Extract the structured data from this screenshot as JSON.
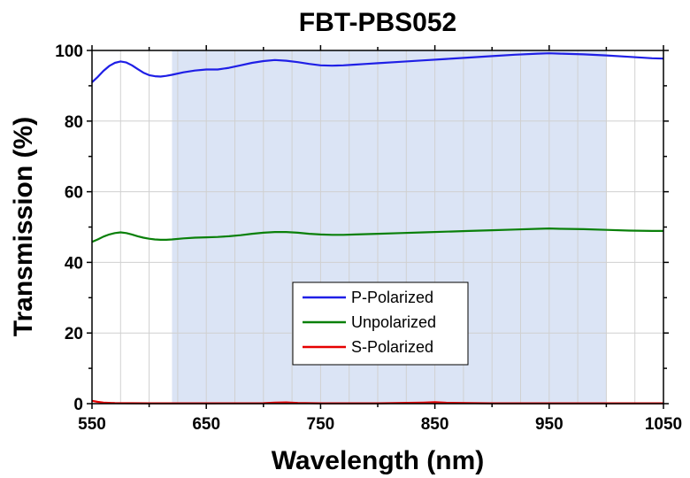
{
  "chart_data": {
    "type": "line",
    "title": "FBT-PBS052",
    "xlabel": "Wavelength (nm)",
    "ylabel": "Transmission (%)",
    "xlim": [
      550,
      1050
    ],
    "ylim": [
      0,
      100
    ],
    "x_ticks": [
      550,
      650,
      750,
      850,
      950,
      1050
    ],
    "y_ticks": [
      0,
      20,
      40,
      60,
      80,
      100
    ],
    "grid": true,
    "shaded_range": [
      620,
      1000
    ],
    "shade_color": "#dbe4f5",
    "legend_position": "bottom-center",
    "series": [
      {
        "name": "P-Polarized",
        "color": "#1f1fe6",
        "x": [
          550,
          555,
          560,
          565,
          570,
          575,
          580,
          585,
          590,
          595,
          600,
          605,
          610,
          615,
          620,
          630,
          640,
          650,
          660,
          670,
          680,
          690,
          700,
          710,
          720,
          730,
          740,
          750,
          760,
          770,
          780,
          790,
          800,
          820,
          840,
          860,
          880,
          900,
          920,
          940,
          950,
          960,
          980,
          1000,
          1020,
          1040,
          1050
        ],
        "y": [
          91,
          92.5,
          94.2,
          95.6,
          96.5,
          96.9,
          96.6,
          95.8,
          94.7,
          93.7,
          93.0,
          92.7,
          92.6,
          92.8,
          93.1,
          93.8,
          94.3,
          94.6,
          94.6,
          95.1,
          95.8,
          96.5,
          97.0,
          97.3,
          97.1,
          96.7,
          96.2,
          95.8,
          95.7,
          95.8,
          96.0,
          96.2,
          96.4,
          96.8,
          97.2,
          97.6,
          98.0,
          98.4,
          98.8,
          99.1,
          99.2,
          99.1,
          98.9,
          98.6,
          98.2,
          97.8,
          97.7
        ]
      },
      {
        "name": "Unpolarized",
        "color": "#0a800a",
        "x": [
          550,
          555,
          560,
          565,
          570,
          575,
          580,
          585,
          590,
          595,
          600,
          605,
          610,
          615,
          620,
          630,
          640,
          650,
          660,
          670,
          680,
          690,
          700,
          710,
          720,
          730,
          740,
          750,
          760,
          770,
          780,
          790,
          800,
          820,
          840,
          860,
          880,
          900,
          920,
          940,
          950,
          960,
          980,
          1000,
          1020,
          1040,
          1050
        ],
        "y": [
          45.8,
          46.5,
          47.3,
          47.9,
          48.3,
          48.5,
          48.3,
          47.9,
          47.4,
          47.0,
          46.7,
          46.5,
          46.4,
          46.4,
          46.5,
          46.8,
          47.0,
          47.1,
          47.2,
          47.4,
          47.7,
          48.1,
          48.4,
          48.6,
          48.6,
          48.4,
          48.1,
          47.9,
          47.8,
          47.8,
          47.9,
          48.0,
          48.1,
          48.3,
          48.5,
          48.7,
          48.9,
          49.1,
          49.3,
          49.5,
          49.6,
          49.5,
          49.4,
          49.2,
          49.0,
          48.9,
          48.9
        ]
      },
      {
        "name": "S-Polarized",
        "color": "#e60000",
        "x": [
          550,
          555,
          560,
          570,
          600,
          650,
          700,
          710,
          720,
          730,
          750,
          800,
          840,
          850,
          860,
          900,
          950,
          1000,
          1050
        ],
        "y": [
          0.8,
          0.5,
          0.3,
          0.15,
          0.1,
          0.1,
          0.12,
          0.3,
          0.35,
          0.2,
          0.1,
          0.1,
          0.3,
          0.4,
          0.25,
          0.1,
          0.1,
          0.1,
          0.1
        ]
      }
    ]
  }
}
